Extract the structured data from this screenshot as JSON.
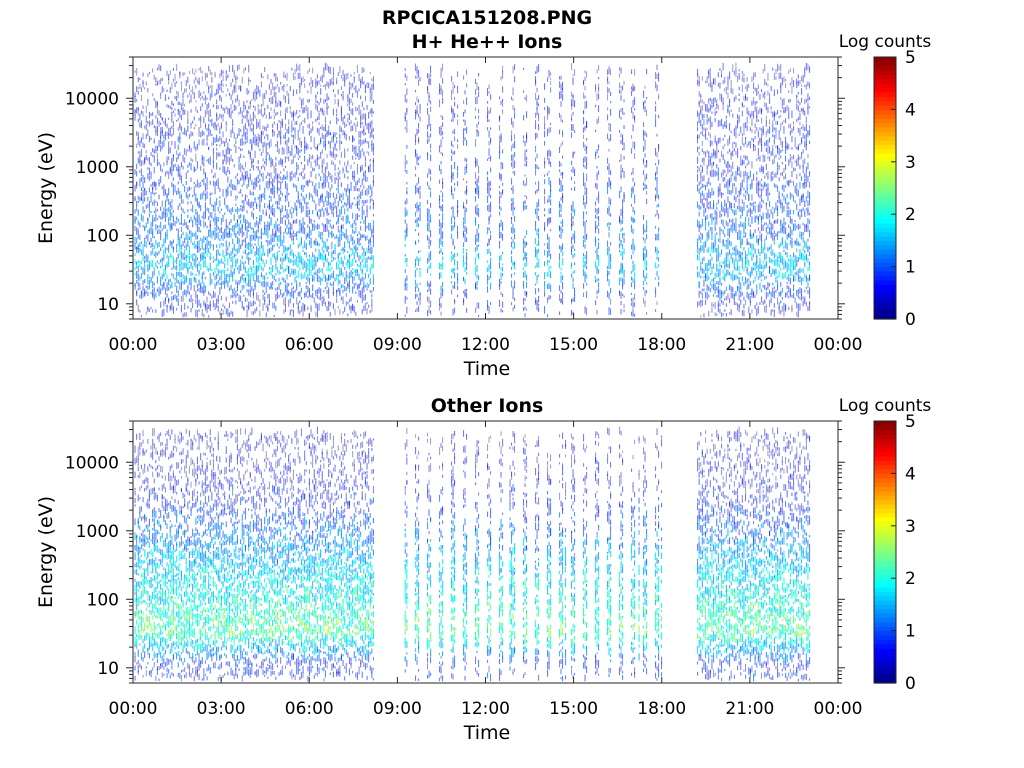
{
  "figure": {
    "title_line1": "RPCICA151208.PNG"
  },
  "chart_data": [
    {
      "type": "heatmap",
      "title": "H+ He++ Ions",
      "xlabel": "Time",
      "ylabel": "Energy (eV)",
      "x_ticks": [
        "00:00",
        "03:00",
        "06:00",
        "09:00",
        "12:00",
        "15:00",
        "18:00",
        "21:00",
        "00:00"
      ],
      "xlim_hours": [
        0,
        24
      ],
      "y_scale": "log",
      "y_ticks": [
        "10",
        "100",
        "1000",
        "10000"
      ],
      "ylim": [
        6,
        40000
      ],
      "colorbar": {
        "label": "Log counts",
        "range": [
          0,
          5
        ],
        "ticks": [
          "0",
          "1",
          "2",
          "3",
          "4",
          "5"
        ],
        "colormap": "jet"
      },
      "data_segments_hours": [
        [
          0.05,
          8.2
        ],
        [
          9.25,
          9.35
        ],
        [
          9.6,
          18.05
        ],
        [
          19.2,
          23.05
        ]
      ],
      "segment_styles": [
        "dense",
        "dense",
        "striped",
        "dense"
      ],
      "intensity_profile": {
        "energies_eV": [
          10,
          30,
          100,
          300,
          1000,
          3000,
          10000,
          20000
        ],
        "log_counts": [
          0.5,
          1.6,
          1.0,
          0.8,
          0.6,
          0.5,
          0.4,
          0.2
        ]
      }
    },
    {
      "type": "heatmap",
      "title": "Other Ions",
      "xlabel": "Time",
      "ylabel": "Energy (eV)",
      "x_ticks": [
        "00:00",
        "03:00",
        "06:00",
        "09:00",
        "12:00",
        "15:00",
        "18:00",
        "21:00",
        "00:00"
      ],
      "xlim_hours": [
        0,
        24
      ],
      "y_scale": "log",
      "y_ticks": [
        "10",
        "100",
        "1000",
        "10000"
      ],
      "ylim": [
        6,
        40000
      ],
      "colorbar": {
        "label": "Log counts",
        "range": [
          0,
          5
        ],
        "ticks": [
          "0",
          "1",
          "2",
          "3",
          "4",
          "5"
        ],
        "colormap": "jet"
      },
      "data_segments_hours": [
        [
          0.05,
          8.2
        ],
        [
          9.25,
          9.35
        ],
        [
          9.6,
          18.05
        ],
        [
          19.2,
          23.05
        ]
      ],
      "segment_styles": [
        "dense",
        "dense",
        "striped",
        "dense"
      ],
      "intensity_profile": {
        "energies_eV": [
          10,
          30,
          100,
          300,
          1000,
          3000,
          10000,
          20000
        ],
        "log_counts": [
          0.6,
          2.3,
          1.9,
          1.6,
          1.0,
          0.5,
          0.3,
          0.2
        ]
      }
    }
  ]
}
